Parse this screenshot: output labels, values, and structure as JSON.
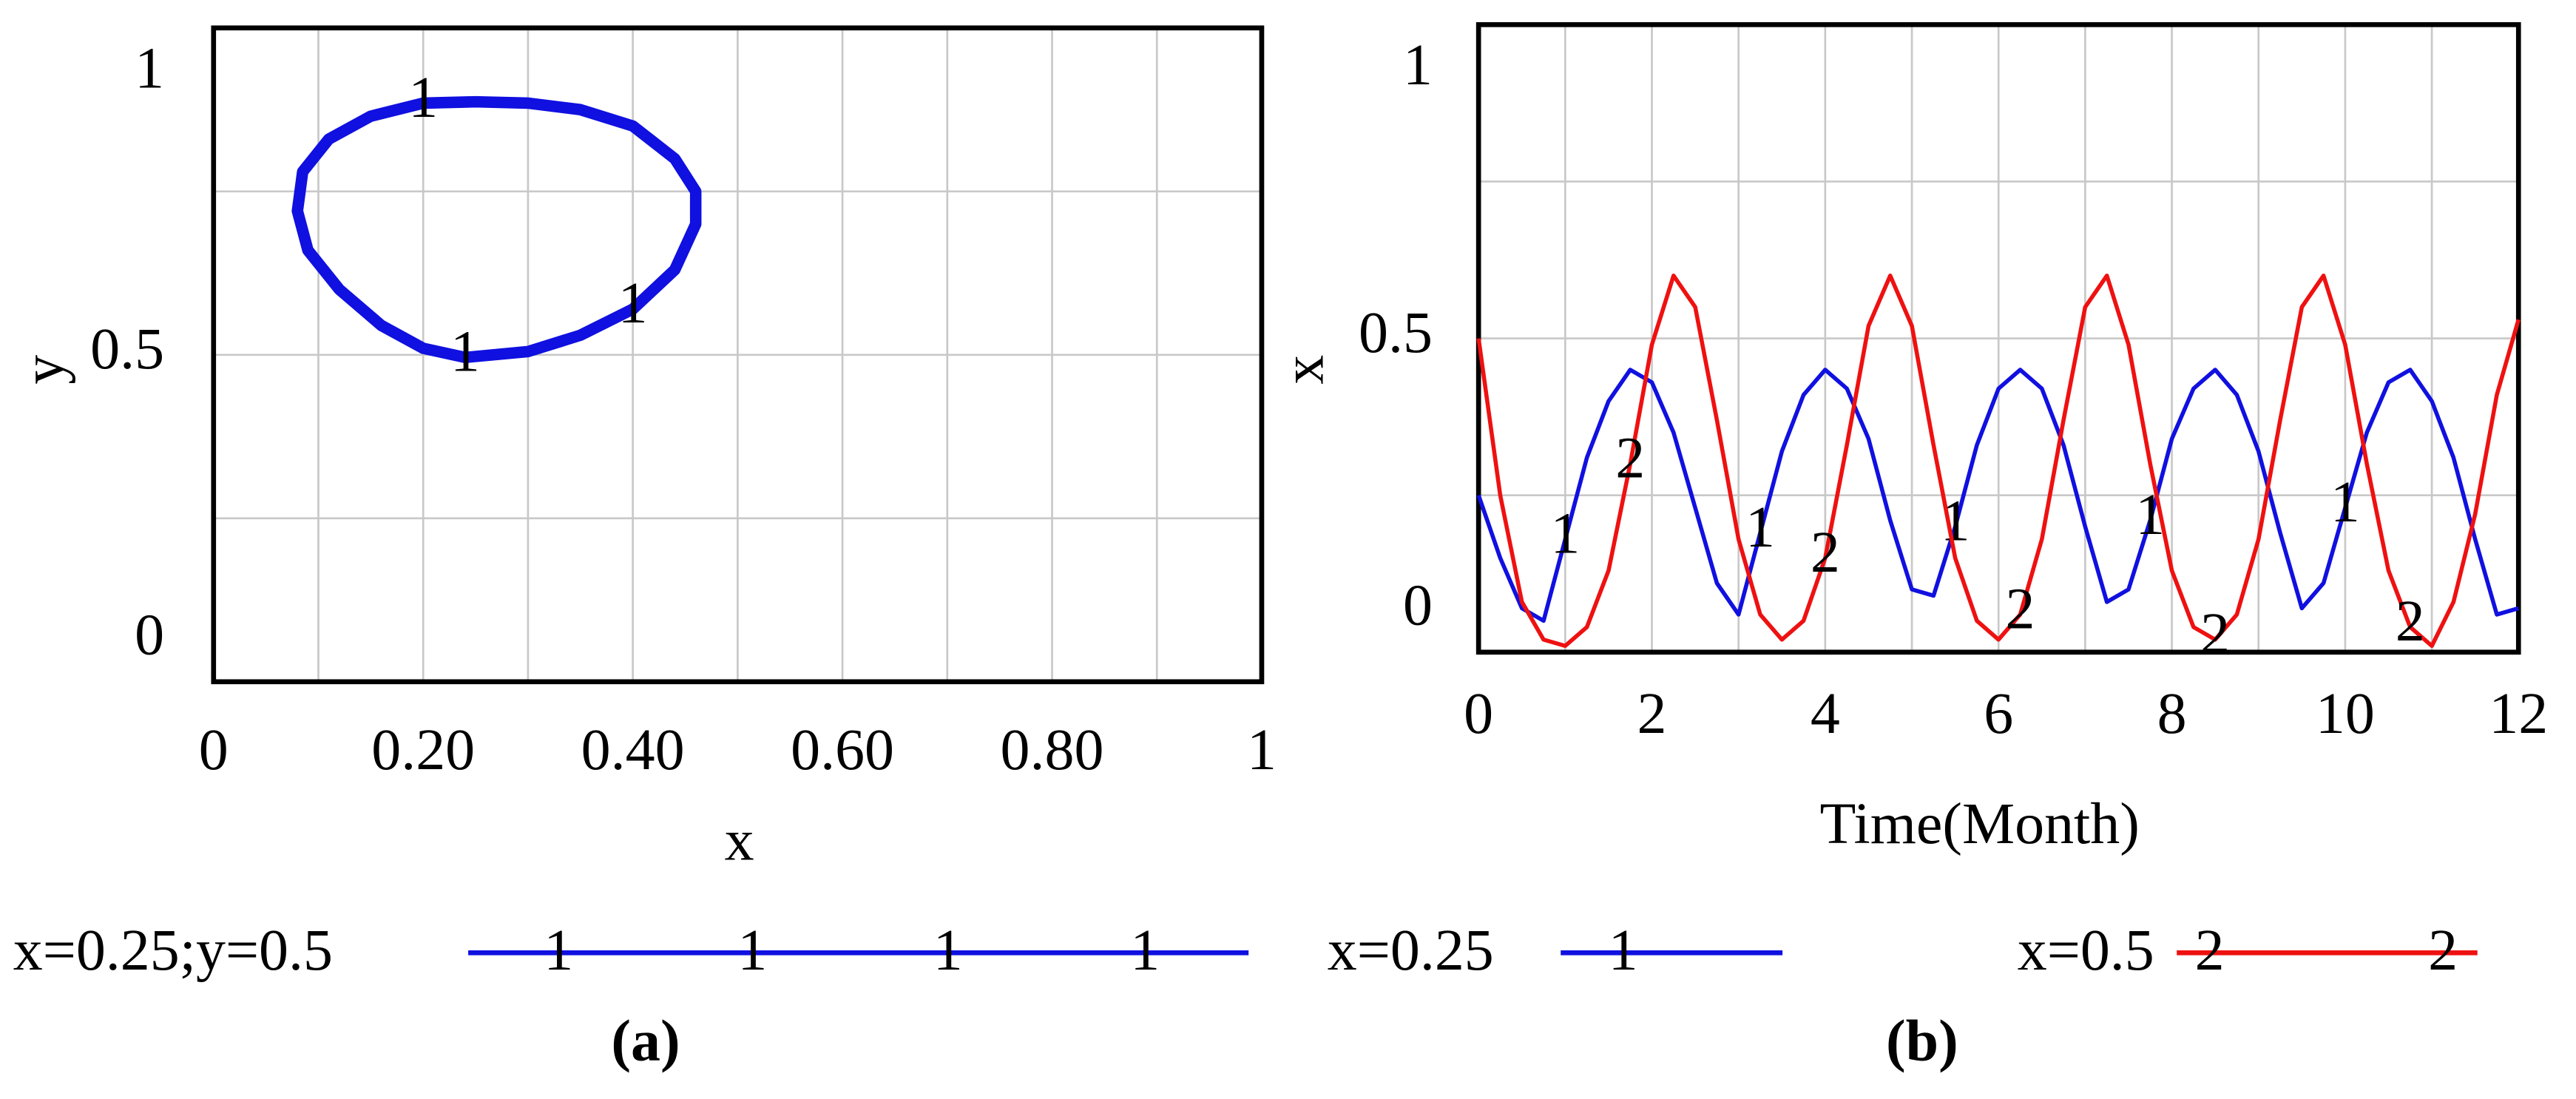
{
  "chart_data": [
    {
      "type": "line",
      "caption": "(a)",
      "xlabel": "x",
      "ylabel": "y",
      "xlim": [
        0,
        1
      ],
      "ylim": [
        0,
        1
      ],
      "xticks": [
        0,
        {
          "value": 0.2,
          "label": "0.20"
        },
        {
          "value": 0.4,
          "label": "0.40"
        },
        {
          "value": 0.6,
          "label": "0.60"
        },
        {
          "value": 0.8,
          "label": "0.80"
        },
        1
      ],
      "yticks": [
        0,
        0.5,
        1
      ],
      "grid": true,
      "xgrid": [
        0.1,
        0.2,
        0.3,
        0.4,
        0.5,
        0.6,
        0.7,
        0.8,
        0.9
      ],
      "ygrid": [
        0.25,
        0.5,
        0.75
      ],
      "x": [
        0.24,
        0.3,
        0.35,
        0.4,
        0.44,
        0.46,
        0.46,
        0.44,
        0.4,
        0.35,
        0.3,
        0.25,
        0.2,
        0.15,
        0.11,
        0.085,
        0.08,
        0.09,
        0.12,
        0.16,
        0.2,
        0.24
      ],
      "series": [
        {
          "name": "x=0.25;y=0.5",
          "marker": "1",
          "color": "#1010e0",
          "values": [
            0.496,
            0.505,
            0.53,
            0.57,
            0.63,
            0.7,
            0.75,
            0.8,
            0.85,
            0.875,
            0.885,
            0.887,
            0.885,
            0.865,
            0.83,
            0.78,
            0.72,
            0.66,
            0.6,
            0.545,
            0.51,
            0.496
          ]
        }
      ]
    },
    {
      "type": "line",
      "caption": "(b)",
      "xlabel": "Time(Month)",
      "ylabel": "x",
      "xlim": [
        0,
        12
      ],
      "ylim": [
        0,
        1
      ],
      "xticks": [
        0,
        2,
        4,
        6,
        8,
        10,
        12
      ],
      "yticks": [
        0,
        0.5,
        1
      ],
      "grid": true,
      "xgrid": [
        1,
        2,
        3,
        4,
        5,
        6,
        7,
        8,
        9,
        10,
        11
      ],
      "ygrid": [
        0.25,
        0.5,
        0.75
      ],
      "x": [
        0,
        0.25,
        0.5,
        0.75,
        1,
        1.25,
        1.5,
        1.75,
        2,
        2.25,
        2.5,
        2.75,
        3,
        3.25,
        3.5,
        3.75,
        4,
        4.25,
        4.5,
        4.75,
        5,
        5.25,
        5.5,
        5.75,
        6,
        6.25,
        6.5,
        6.75,
        7,
        7.25,
        7.5,
        7.75,
        8,
        8.25,
        8.5,
        8.75,
        9,
        9.25,
        9.5,
        9.75,
        10,
        10.25,
        10.5,
        10.75,
        11,
        11.25,
        11.5,
        11.75,
        12
      ],
      "series": [
        {
          "name": "x=0.25",
          "marker": "1",
          "color": "#1010e0",
          "values": [
            0.25,
            0.15,
            0.07,
            0.05,
            0.18,
            0.31,
            0.4,
            0.45,
            0.43,
            0.35,
            0.23,
            0.11,
            0.06,
            0.19,
            0.32,
            0.41,
            0.45,
            0.42,
            0.34,
            0.21,
            0.1,
            0.09,
            0.2,
            0.33,
            0.42,
            0.45,
            0.42,
            0.33,
            0.2,
            0.08,
            0.1,
            0.21,
            0.34,
            0.42,
            0.45,
            0.41,
            0.32,
            0.19,
            0.07,
            0.11,
            0.23,
            0.35,
            0.43,
            0.45,
            0.4,
            0.31,
            0.18,
            0.06,
            0.07
          ]
        },
        {
          "name": "x=0.5",
          "marker": "2",
          "color": "#ee1111",
          "values": [
            0.5,
            0.25,
            0.08,
            0.02,
            0.01,
            0.04,
            0.13,
            0.3,
            0.49,
            0.6,
            0.55,
            0.37,
            0.18,
            0.06,
            0.02,
            0.05,
            0.15,
            0.33,
            0.52,
            0.6,
            0.52,
            0.33,
            0.15,
            0.05,
            0.02,
            0.06,
            0.18,
            0.37,
            0.55,
            0.6,
            0.49,
            0.3,
            0.13,
            0.04,
            0.02,
            0.06,
            0.18,
            0.37,
            0.55,
            0.6,
            0.49,
            0.3,
            0.13,
            0.04,
            0.01,
            0.08,
            0.22,
            0.41,
            0.53
          ]
        }
      ]
    }
  ]
}
